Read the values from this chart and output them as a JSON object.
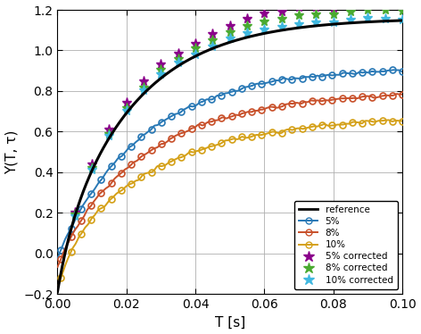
{
  "xlabel": "T [s]",
  "ylabel": "Y(T, τ)",
  "xlim": [
    0,
    0.1
  ],
  "ylim": [
    -0.2,
    1.2
  ],
  "xticks": [
    0,
    0.02,
    0.04,
    0.06,
    0.08,
    0.1
  ],
  "yticks": [
    -0.2,
    0,
    0.2,
    0.4,
    0.6,
    0.8,
    1.0,
    1.2
  ],
  "reference_color": "#000000",
  "pct5_color": "#2878b5",
  "pct8_color": "#c8502a",
  "pct10_color": "#d4a017",
  "corr5_color": "#8B008B",
  "corr8_color": "#4aaa30",
  "corr10_color": "#40b8e0",
  "grid_color": "#b0b0b0",
  "t_corr": [
    0.005,
    0.01,
    0.015,
    0.02,
    0.025,
    0.03,
    0.035,
    0.04,
    0.045,
    0.05,
    0.055,
    0.06,
    0.065,
    0.07,
    0.075,
    0.08,
    0.085,
    0.09,
    0.095,
    0.1
  ],
  "corr5_offsets": [
    0.02,
    0.03,
    0.04,
    0.05,
    0.06,
    0.07,
    0.06,
    0.06,
    0.07,
    0.08,
    0.09,
    0.1,
    0.09,
    0.1,
    0.09,
    0.08,
    0.09,
    0.1,
    0.09,
    0.08
  ],
  "corr8_offsets": [
    0.01,
    0.015,
    0.02,
    0.025,
    0.03,
    0.04,
    0.035,
    0.04,
    0.04,
    0.05,
    0.055,
    0.06,
    0.055,
    0.06,
    0.055,
    0.05,
    0.055,
    0.06,
    0.055,
    0.05
  ],
  "corr10_offsets": [
    0.0,
    0.005,
    0.01,
    0.01,
    0.015,
    0.02,
    0.015,
    0.01,
    0.01,
    0.02,
    0.02,
    0.02,
    0.015,
    0.02,
    0.015,
    0.01,
    0.015,
    0.02,
    0.01,
    0.005
  ]
}
